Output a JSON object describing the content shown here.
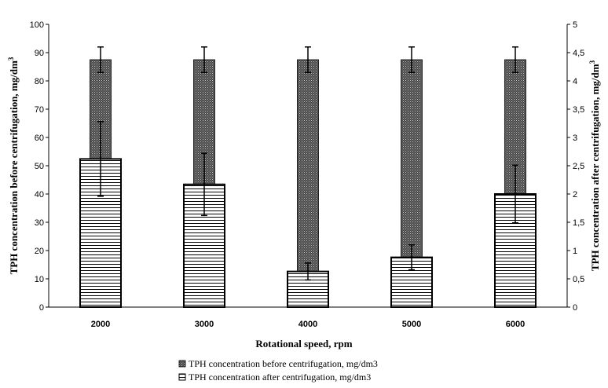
{
  "chart_data": {
    "type": "bar",
    "categories": [
      "2000",
      "3000",
      "4000",
      "5000",
      "6000"
    ],
    "xlabel": "Rotational speed, rpm",
    "ylabel_left": "TPH concentration before centrifugation, mg/dm",
    "ylabel_left_sup": "3",
    "ylabel_right": "TPH concentration after centrifugation, mg/dm",
    "ylabel_right_sup": "3",
    "y_left": {
      "min": 0,
      "max": 100,
      "step": 10,
      "ticks": [
        "0",
        "10",
        "20",
        "30",
        "40",
        "50",
        "60",
        "70",
        "80",
        "90",
        "100"
      ]
    },
    "y_right": {
      "min": 0,
      "max": 5,
      "step": 0.5,
      "ticks": [
        "0",
        "0,5",
        "1",
        "1,5",
        "2",
        "2,5",
        "3",
        "3,5",
        "4",
        "4,5",
        "5"
      ]
    },
    "series": [
      {
        "name": "TPH concentration before centrifugation, mg/dm3",
        "axis": "left",
        "pattern": "dotted-dark",
        "values": [
          87.5,
          87.5,
          87.5,
          87.5,
          87.5
        ],
        "error": [
          4.5,
          4.5,
          4.5,
          4.5,
          4.5
        ]
      },
      {
        "name": "TPH concentration after centrifugation, mg/dm3",
        "axis": "right",
        "pattern": "horizontal-lines",
        "values": [
          2.62,
          2.17,
          0.63,
          0.88,
          2.0
        ],
        "error": [
          0.66,
          0.55,
          0.15,
          0.22,
          0.51
        ]
      }
    ],
    "legend_position": "bottom-center",
    "grid": false
  }
}
